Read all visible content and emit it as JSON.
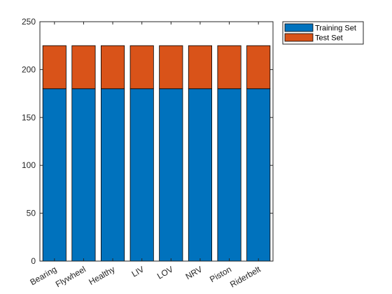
{
  "chart_data": {
    "type": "bar",
    "stacked": true,
    "categories": [
      "Bearing",
      "Flywheel",
      "Healthy",
      "LIV",
      "LOV",
      "NRV",
      "Piston",
      "Riderbelt"
    ],
    "series": [
      {
        "name": "Training Set",
        "values": [
          180,
          180,
          180,
          180,
          180,
          180,
          180,
          180
        ],
        "color": "#0072BD"
      },
      {
        "name": "Test Set",
        "values": [
          45,
          45,
          45,
          45,
          45,
          45,
          45,
          45
        ],
        "color": "#D95319"
      }
    ],
    "title": "",
    "xlabel": "",
    "ylabel": "",
    "ylim": [
      0,
      250
    ],
    "yticks": [
      0,
      50,
      100,
      150,
      200,
      250
    ],
    "grid": false,
    "legend_position": "outside-top-right"
  }
}
